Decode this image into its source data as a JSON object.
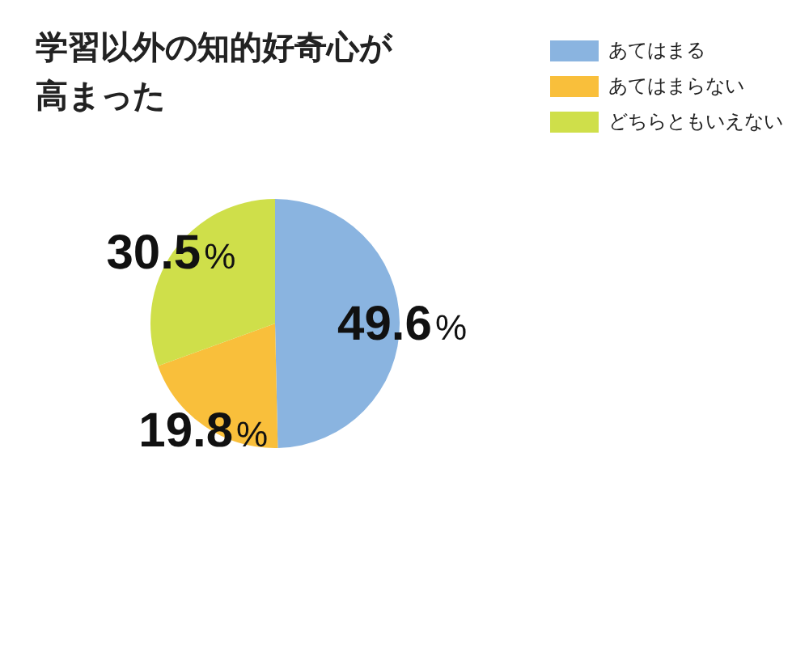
{
  "chart_data": {
    "type": "pie",
    "title": "学習以外の知的好奇心が高まった",
    "categories": [
      "あてはまる",
      "あてはまらない",
      "どちらともいえない"
    ],
    "values": [
      49.6,
      19.8,
      30.5
    ],
    "colors": [
      "#8ab4e0",
      "#f9bf3b",
      "#cfdf4a"
    ],
    "value_labels": [
      "49.6%",
      "19.8%",
      "30.5%"
    ],
    "legend": "top right"
  }
}
